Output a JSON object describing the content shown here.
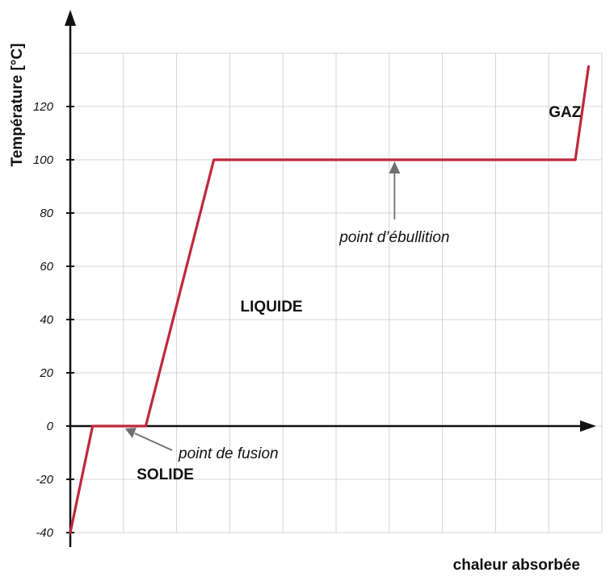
{
  "chart_data": {
    "type": "line",
    "xlabel": "chaleur absorbée",
    "ylabel": "Température [°C]",
    "ylim": [
      -40,
      140
    ],
    "yticks": [
      -40,
      -20,
      0,
      20,
      40,
      60,
      80,
      100,
      120
    ],
    "xlim": [
      0,
      10
    ],
    "grid": true,
    "series": [
      {
        "x": [
          0,
          0.42,
          1.42,
          2.7,
          9.5,
          9.75
        ],
        "y": [
          -40,
          0,
          0,
          100,
          100,
          135
        ]
      }
    ],
    "phase_labels": [
      {
        "text": "SOLIDE",
        "x": 1.25,
        "y": -20
      },
      {
        "text": "LIQUIDE",
        "x": 3.2,
        "y": 43
      },
      {
        "text": "GAZ",
        "x": 9.0,
        "y": 116
      }
    ],
    "annotations": [
      {
        "text": "point de fusion",
        "arrow_x": 1.0,
        "arrow_y": 0
      },
      {
        "text": "point d’ébullition",
        "arrow_x": 6.1,
        "arrow_y": 100
      }
    ],
    "colors": {
      "line": "#c0283c",
      "grid": "#d4d4d4",
      "axis": "#111111",
      "arrow": "#707070"
    }
  }
}
